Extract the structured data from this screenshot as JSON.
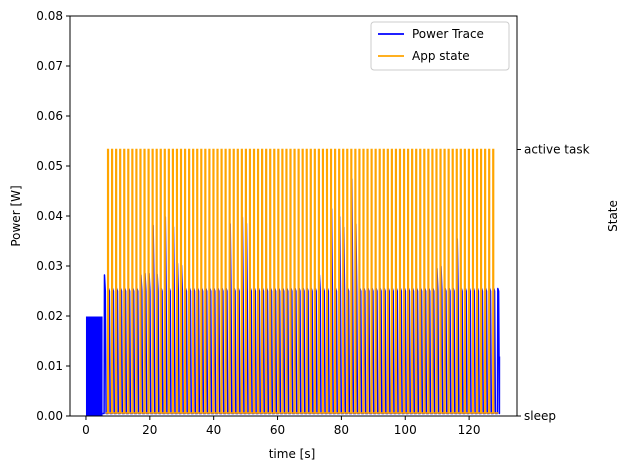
{
  "chart_data": {
    "type": "line",
    "xlabel": "time [s]",
    "ylabel": "Power [W]",
    "y2label": "State",
    "xlim": [
      -5,
      135
    ],
    "ylim": [
      0,
      0.08
    ],
    "xticks": [
      0,
      20,
      40,
      60,
      80,
      100,
      120
    ],
    "yticks": [
      0.0,
      0.01,
      0.02,
      0.03,
      0.04,
      0.05,
      0.06,
      0.07,
      0.08
    ],
    "ytick_labels": [
      "0.00",
      "0.01",
      "0.02",
      "0.03",
      "0.04",
      "0.05",
      "0.06",
      "0.07",
      "0.08"
    ],
    "y2_ticks": [
      {
        "label": "sleep",
        "power_equiv": 0.0
      },
      {
        "label": "active task",
        "power_equiv": 0.0533
      }
    ],
    "legend_position": "top-right",
    "series": [
      {
        "name": "Power Trace",
        "color": "#0000ff",
        "kind": "dense-spike-trace",
        "startup": {
          "t_start": 0.0,
          "t_end": 5.2,
          "level": 0.0199
        },
        "spike_start": 5.8,
        "spike_period": 1.27,
        "spike_end": 129.4,
        "base_level": 0.0005,
        "typical_peak": 0.0255,
        "end_value": 0.0119,
        "peaks": [
          [
            5.8,
            0.0282
          ],
          [
            16.8,
            0.0282
          ],
          [
            18.0,
            0.0285
          ],
          [
            19.3,
            0.0285
          ],
          [
            20.5,
            0.0381
          ],
          [
            21.9,
            0.0283
          ],
          [
            24.4,
            0.0398
          ],
          [
            26.9,
            0.0378
          ],
          [
            28.3,
            0.0305
          ],
          [
            29.5,
            0.0301
          ],
          [
            44.8,
            0.0384
          ],
          [
            48.6,
            0.0397
          ],
          [
            49.8,
            0.0385
          ],
          [
            73.0,
            0.0282
          ],
          [
            76.8,
            0.0414
          ],
          [
            79.3,
            0.0398
          ],
          [
            80.6,
            0.0377
          ],
          [
            83.1,
            0.0474
          ],
          [
            84.4,
            0.0384
          ],
          [
            110.4,
            0.0295
          ],
          [
            111.7,
            0.0299
          ],
          [
            116.8,
            0.0354
          ]
        ]
      },
      {
        "name": "App state",
        "color": "#ffa500",
        "kind": "square-pulses",
        "pulse_start": 6.8,
        "pulse_period": 1.27,
        "pulse_end": 128.5,
        "pulse_width": 0.22,
        "high": 0.0533,
        "low": 0.0006
      }
    ]
  }
}
